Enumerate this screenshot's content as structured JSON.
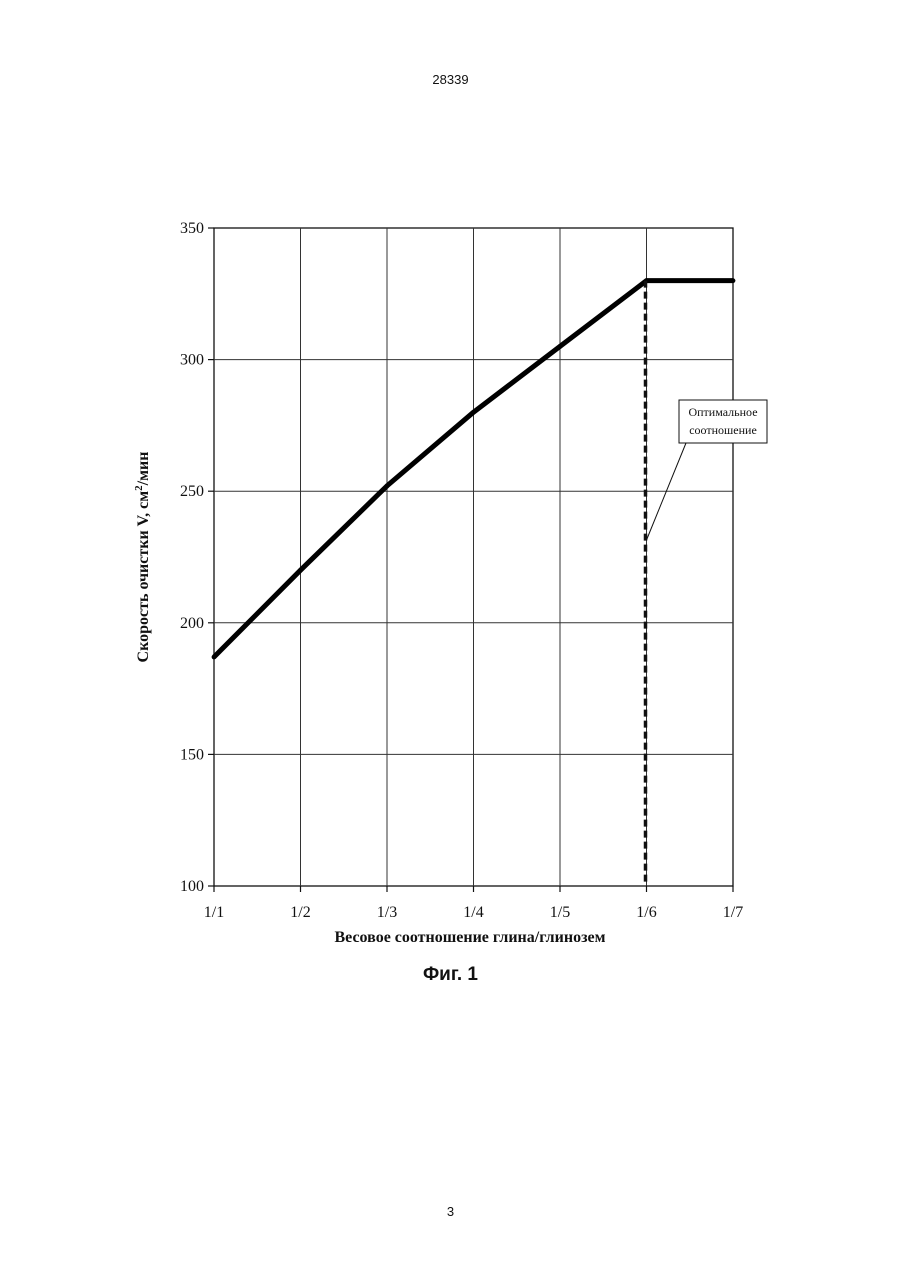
{
  "header": {
    "doc_number": "28339"
  },
  "footer": {
    "page_number": "3"
  },
  "figure": {
    "caption": "Фиг. 1"
  },
  "chart_data": {
    "type": "line",
    "title": "",
    "xlabel": "Весовое соотношение глина/глинозем",
    "ylabel_main": "Скорость очистки  V,  см",
    "ylabel_sup": "2",
    "ylabel_tail": "/мин",
    "categories": [
      "1/1",
      "1/2",
      "1/3",
      "1/4",
      "1/5",
      "1/6",
      "1/7"
    ],
    "ylim": [
      100,
      350
    ],
    "yticks": [
      100,
      150,
      200,
      250,
      300,
      350
    ],
    "grid": true,
    "series": [
      {
        "values": [
          187,
          220,
          252,
          280,
          305,
          330,
          330
        ],
        "color": "#000000"
      }
    ],
    "optimum": {
      "x": "1/6",
      "label_line1": "Оптимальное",
      "label_line2": "соотношение"
    }
  }
}
